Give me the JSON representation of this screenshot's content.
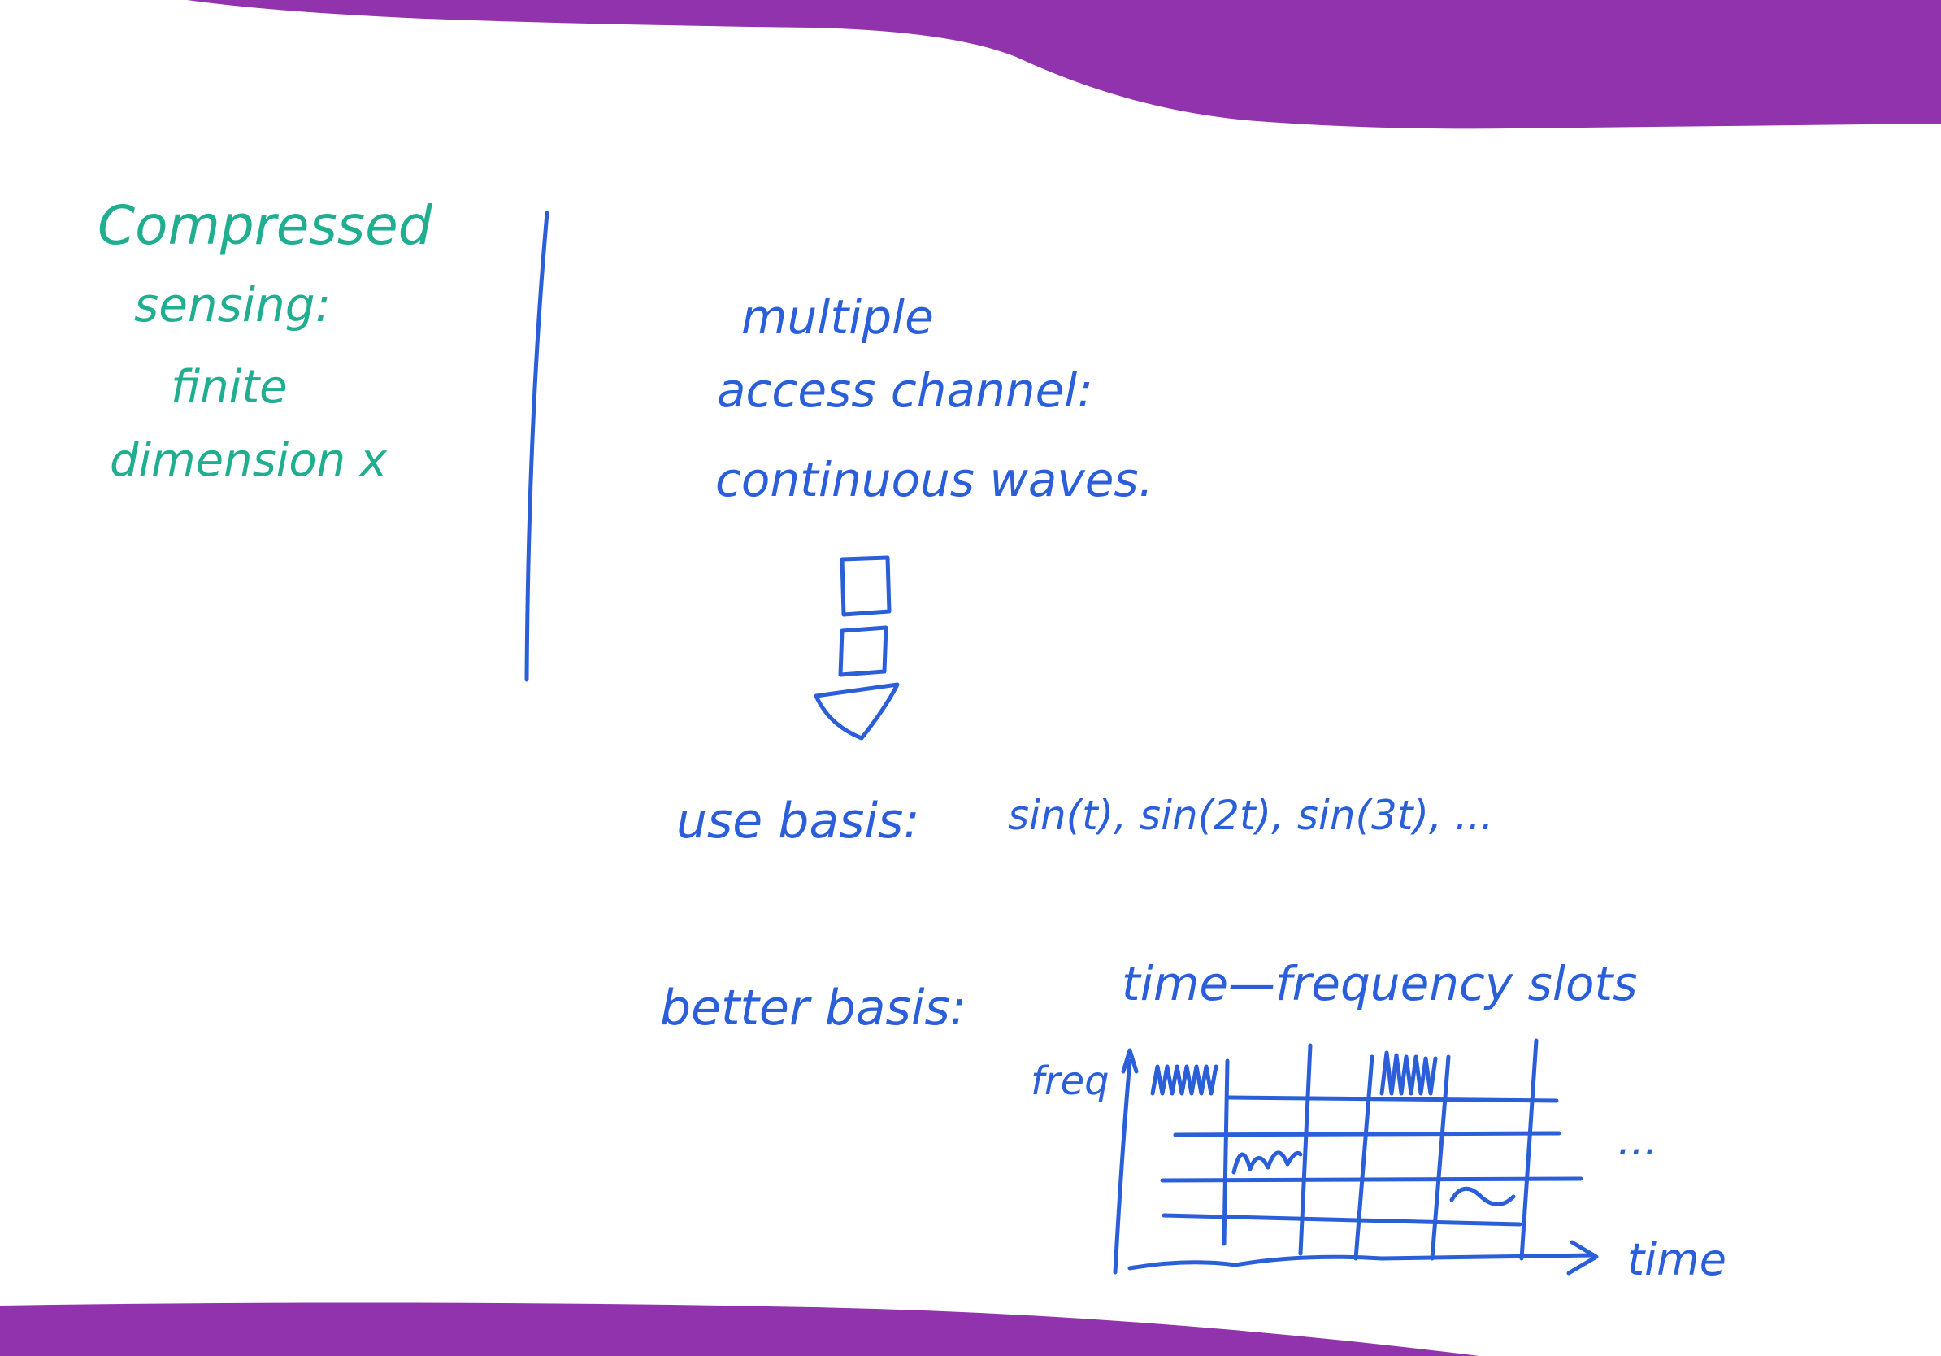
{
  "colors": {
    "band": "#9233ae",
    "teal_ink": "#1fae8f",
    "blue_ink": "#2b5fd9",
    "background": "#ffffff"
  },
  "left_note": {
    "line1": "Compressed",
    "line2": "sensing:",
    "line3": "finite",
    "line4": "dimension x"
  },
  "right_note": {
    "line1": "multiple",
    "line2": "access channel:",
    "line3": "continuous waves.",
    "basis_label": "use basis:",
    "basis_terms": "sin(t), sin(2t), sin(3t), ...",
    "better_label": "better basis:",
    "better_terms": "time—frequency slots",
    "grid_ylabel": "freq",
    "grid_xlabel": "time",
    "grid_ellipsis": "..."
  }
}
